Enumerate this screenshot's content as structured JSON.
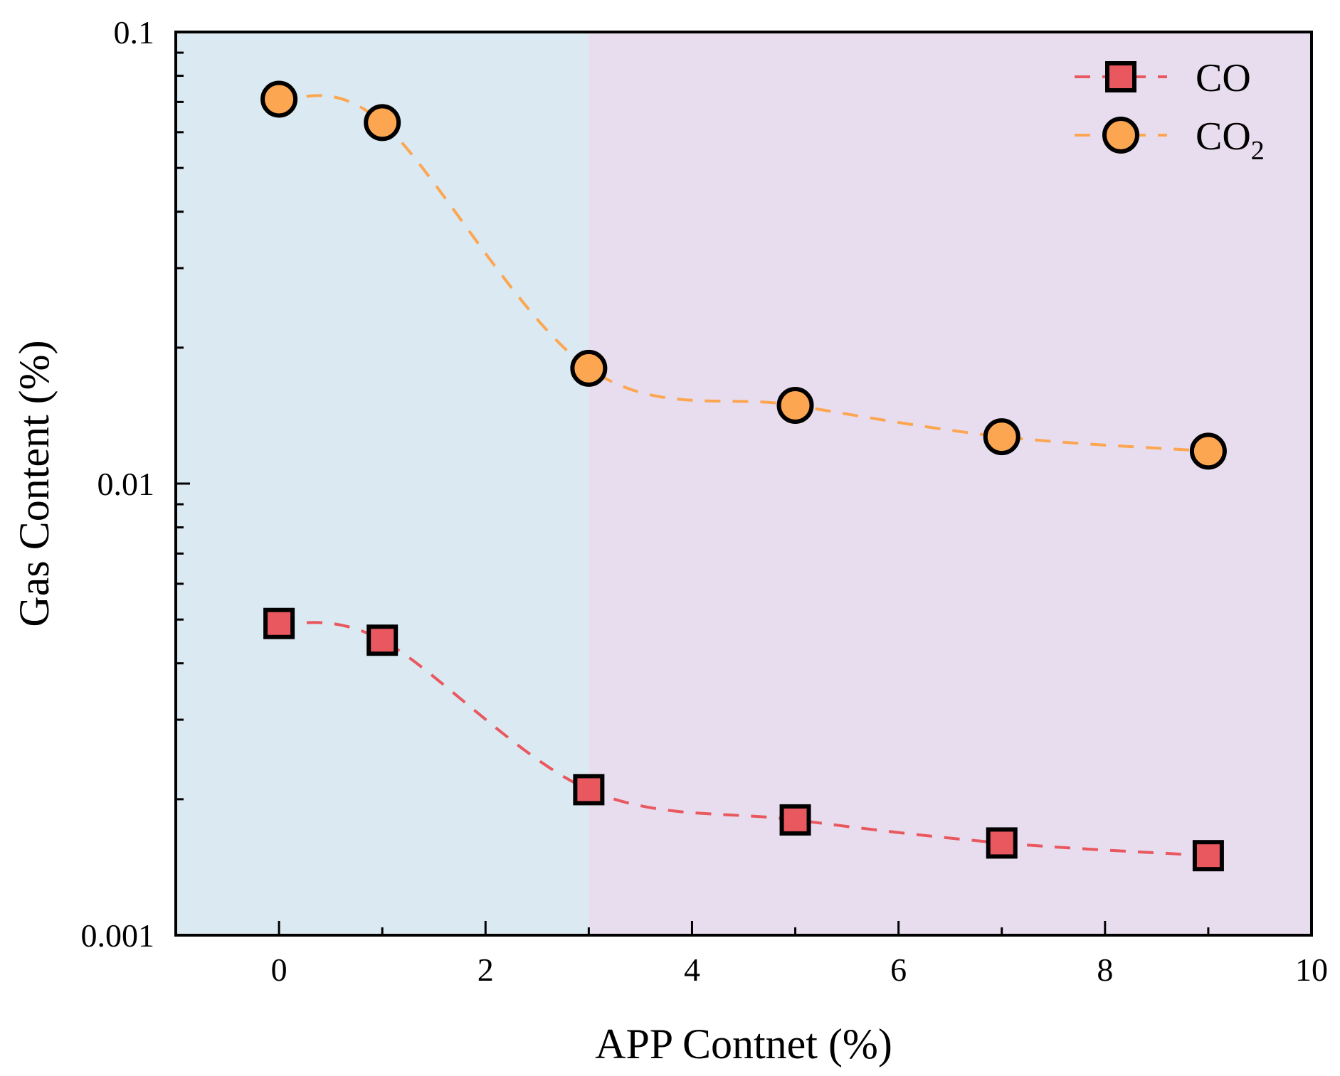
{
  "chart_data": {
    "type": "line",
    "title": "",
    "xlabel": "APP Contnet (%)",
    "ylabel": "Gas Content (%)",
    "xlim": [
      -1,
      10
    ],
    "ylim": [
      0.001,
      0.1
    ],
    "yscale": "log",
    "x_ticks": [
      0,
      2,
      4,
      6,
      8,
      10
    ],
    "x_tick_labels": [
      "0",
      "2",
      "4",
      "6",
      "8",
      "10"
    ],
    "y_ticks": [
      0.001,
      0.01,
      0.1
    ],
    "y_tick_labels": [
      "0.001",
      "0.01",
      "0.1"
    ],
    "grid": false,
    "legend_position": "top-right",
    "background_regions": [
      {
        "x_start": -1,
        "x_end": 3,
        "color": "#dbe9f2"
      },
      {
        "x_start": 3,
        "x_end": 10,
        "color": "#e8ddee"
      }
    ],
    "series": [
      {
        "name": "CO",
        "legend_main": "CO",
        "legend_sub": "",
        "marker": "square",
        "color": "#e9585f",
        "x": [
          0,
          1,
          3,
          5,
          7,
          9
        ],
        "values": [
          0.0049,
          0.0045,
          0.0021,
          0.0018,
          0.0016,
          0.0015
        ]
      },
      {
        "name": "CO2",
        "legend_main": "CO",
        "legend_sub": "2",
        "marker": "circle",
        "color": "#fca651",
        "x": [
          0,
          1,
          3,
          5,
          7,
          9
        ],
        "values": [
          0.071,
          0.063,
          0.018,
          0.0149,
          0.0127,
          0.0118
        ]
      }
    ]
  }
}
